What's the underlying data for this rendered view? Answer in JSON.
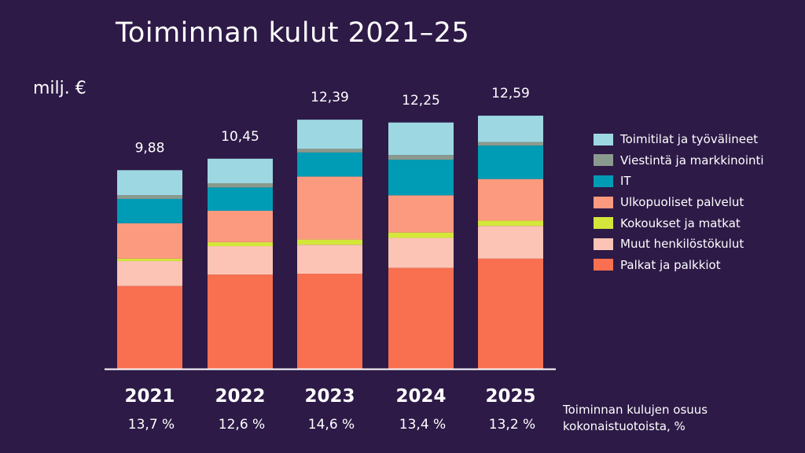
{
  "chart_data": {
    "type": "bar",
    "stacked": true,
    "title": "Toiminnan kulut 2021–25",
    "ylabel": "milj. €",
    "categories": [
      "2021",
      "2022",
      "2023",
      "2024",
      "2025"
    ],
    "totals": [
      "9,88",
      "10,45",
      "12,39",
      "12,25",
      "12,59"
    ],
    "shares": [
      "13,7 %",
      "12,6 %",
      "14,6 %",
      "13,4 %",
      "13,2 %"
    ],
    "shares_label": "Toiminnan kulujen osuus kokonaistuotoista, %",
    "ylim": [
      0,
      13
    ],
    "grid": false,
    "legend_position": "right",
    "series": [
      {
        "name": "Palkat ja palkkiot",
        "color": "#f87050",
        "values": [
          4.12,
          4.69,
          4.73,
          5.02,
          5.48
        ]
      },
      {
        "name": "Muut henkilöstökulut",
        "color": "#fcc4b5",
        "values": [
          1.24,
          1.41,
          1.44,
          1.49,
          1.63
        ]
      },
      {
        "name": "Kokoukset ja matkat",
        "color": "#d4e63a",
        "values": [
          0.12,
          0.2,
          0.26,
          0.27,
          0.26
        ]
      },
      {
        "name": "Ulkopuoliset palvelut",
        "color": "#fc9a80",
        "values": [
          1.76,
          1.56,
          3.13,
          1.85,
          2.07
        ]
      },
      {
        "name": "IT",
        "color": "#009cb5",
        "values": [
          1.21,
          1.16,
          1.2,
          1.77,
          1.66
        ]
      },
      {
        "name": "Viestintä ja markkinointi",
        "color": "#8a9a8e",
        "values": [
          0.19,
          0.21,
          0.19,
          0.23,
          0.18
        ]
      },
      {
        "name": "Toimitilat ja työvälineet",
        "color": "#9dd8e2",
        "values": [
          1.24,
          1.22,
          1.44,
          1.62,
          1.31
        ]
      }
    ]
  }
}
